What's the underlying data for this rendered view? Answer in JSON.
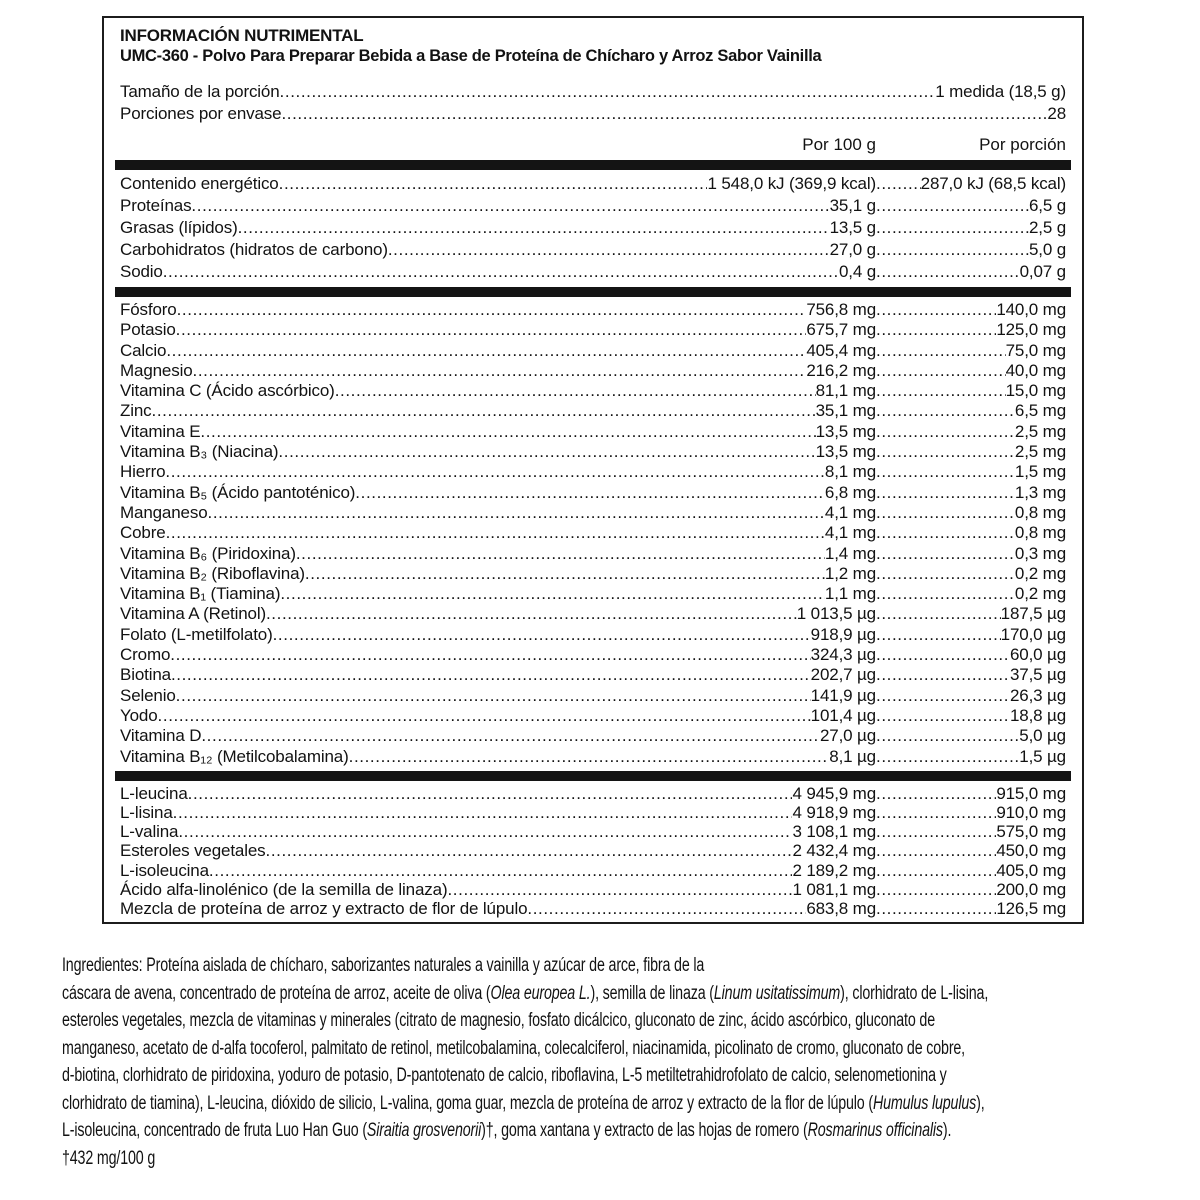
{
  "colors": {
    "ink": "#121212",
    "bar": "#141414",
    "background": "#ffffff"
  },
  "panel": {
    "title": "INFORMACIÓN NUTRIMENTAL",
    "subtitle": "UMC-360 - Polvo Para Preparar Bebida a Base de Proteína de Chícharo y Arroz Sabor Vainilla",
    "serving_rows": [
      {
        "label": "Tamaño de la porción",
        "value": "1 medida (18,5 g)"
      },
      {
        "label": "Porciones por envase",
        "value": "28"
      }
    ],
    "columns": {
      "per100": "Por 100 g",
      "per_serving": "Por porción"
    },
    "sections": [
      {
        "name": "macronutrientes",
        "rows": [
          {
            "label": "Contenido energético",
            "per100": "1 548,0 kJ (369,9 kcal)",
            "serving": "287,0 kJ (68,5 kcal)"
          },
          {
            "label": "Proteínas",
            "per100": "35,1 g",
            "serving": "6,5 g"
          },
          {
            "label": "Grasas (lípidos)",
            "per100": "13,5 g",
            "serving": "2,5 g"
          },
          {
            "label": "Carbohidratos (hidratos de carbono)",
            "per100": "27,0 g",
            "serving": "5,0 g"
          },
          {
            "label": "Sodio",
            "per100": "0,4 g",
            "serving": "0,07 g"
          }
        ]
      },
      {
        "name": "vitaminas-y-minerales",
        "rows": [
          {
            "label": "Fósforo",
            "per100": "756,8 mg",
            "serving": "140,0 mg"
          },
          {
            "label": "Potasio",
            "per100": "675,7 mg",
            "serving": "125,0 mg"
          },
          {
            "label": "Calcio",
            "per100": "405,4 mg",
            "serving": "75,0 mg"
          },
          {
            "label": "Magnesio",
            "per100": "216,2 mg",
            "serving": "40,0 mg"
          },
          {
            "label": "Vitamina C (Ácido ascórbico)",
            "per100": "81,1 mg",
            "serving": "15,0 mg"
          },
          {
            "label": "Zinc",
            "per100": "35,1 mg",
            "serving": "6,5 mg"
          },
          {
            "label": "Vitamina E",
            "per100": "13,5 mg",
            "serving": "2,5 mg"
          },
          {
            "label": "Vitamina B₃ (Niacina)",
            "per100": "13,5 mg",
            "serving": "2,5 mg"
          },
          {
            "label": "Hierro",
            "per100": "8,1 mg",
            "serving": "1,5 mg"
          },
          {
            "label": "Vitamina B₅ (Ácido pantoténico)",
            "per100": "6,8 mg",
            "serving": "1,3 mg"
          },
          {
            "label": "Manganeso",
            "per100": "4,1 mg",
            "serving": "0,8 mg"
          },
          {
            "label": "Cobre",
            "per100": "4,1 mg",
            "serving": "0,8 mg"
          },
          {
            "label": "Vitamina B₆ (Piridoxina)",
            "per100": "1,4 mg",
            "serving": "0,3 mg"
          },
          {
            "label": "Vitamina B₂ (Riboflavina)",
            "per100": "1,2 mg",
            "serving": "0,2 mg"
          },
          {
            "label": "Vitamina B₁ (Tiamina)",
            "per100": "1,1 mg",
            "serving": "0,2 mg"
          },
          {
            "label": "Vitamina A (Retinol)",
            "per100": "1 013,5 µg",
            "serving": "187,5 µg"
          },
          {
            "label": "Folato (L-metilfolato)",
            "per100": "918,9 µg",
            "serving": "170,0 µg"
          },
          {
            "label": "Cromo",
            "per100": "324,3 µg",
            "serving": "60,0 µg"
          },
          {
            "label": "Biotina",
            "per100": "202,7 µg",
            "serving": "37,5 µg"
          },
          {
            "label": "Selenio",
            "per100": "141,9 µg",
            "serving": "26,3 µg"
          },
          {
            "label": "Yodo",
            "per100": "101,4 µg",
            "serving": "18,8 µg"
          },
          {
            "label": "Vitamina D",
            "per100": "27,0 µg",
            "serving": "5,0 µg"
          },
          {
            "label": "Vitamina B₁₂ (Metilcobalamina)",
            "per100": "8,1 µg",
            "serving": "1,5 µg"
          }
        ]
      },
      {
        "name": "aminoacidos-y-otros",
        "rows": [
          {
            "label": "L-leucina",
            "per100": "4 945,9 mg",
            "serving": "915,0 mg"
          },
          {
            "label": "L-lisina",
            "per100": "4 918,9 mg",
            "serving": "910,0 mg"
          },
          {
            "label": "L-valina",
            "per100": "3 108,1 mg",
            "serving": "575,0 mg"
          },
          {
            "label": "Esteroles vegetales",
            "per100": "2 432,4 mg",
            "serving": "450,0 mg"
          },
          {
            "label": "L-isoleucina",
            "per100": "2 189,2 mg",
            "serving": "405,0 mg"
          },
          {
            "label": "Ácido alfa-linolénico (de la semilla de linaza)",
            "per100": "1 081,1 mg",
            "serving": "200,0 mg"
          },
          {
            "label": "Mezcla de proteína de arroz y extracto de flor de lúpulo",
            "per100": "683,8 mg",
            "serving": "126,5 mg"
          }
        ]
      }
    ]
  },
  "ingredients": {
    "lines": [
      [
        {
          "t": "Ingredientes: Proteína aislada de chícharo, saborizantes naturales a vainilla y azúcar de arce, fibra de la"
        }
      ],
      [
        {
          "t": "cáscara de avena, concentrado de proteína de arroz, aceite de oliva ("
        },
        {
          "t": "Olea europea L.",
          "i": true
        },
        {
          "t": "), semilla de linaza ("
        },
        {
          "t": "Linum usitatissimum",
          "i": true
        },
        {
          "t": "), clorhidrato de L-lisina,"
        }
      ],
      [
        {
          "t": "esteroles vegetales, mezcla de vitaminas y minerales (citrato de magnesio, fosfato dicálcico, gluconato de zinc, ácido ascórbico, gluconato de"
        }
      ],
      [
        {
          "t": "manganeso, acetato de d-alfa tocoferol, palmitato de retinol, metilcobalamina, colecalciferol, niacinamida, picolinato de cromo, gluconato de cobre,"
        }
      ],
      [
        {
          "t": "d-biotina, clorhidrato de piridoxina, yoduro de potasio, D-pantotenato de calcio, riboflavina, L-5 metiltetrahidrofolato de calcio, selenometionina y"
        }
      ],
      [
        {
          "t": "clorhidrato de tiamina), L-leucina, dióxido de silicio, L-valina, goma guar, mezcla de proteína de arroz y extracto de la flor de lúpulo ("
        },
        {
          "t": "Humulus lupulus",
          "i": true
        },
        {
          "t": "),"
        }
      ],
      [
        {
          "t": "L-isoleucina, concentrado de fruta Luo Han Guo ("
        },
        {
          "t": "Siraitia grosvenorii",
          "i": true
        },
        {
          "t": ")†, goma xantana y extracto de las hojas de romero ("
        },
        {
          "t": "Rosmarinus officinalis",
          "i": true
        },
        {
          "t": ")."
        }
      ],
      [
        {
          "t": "†432 mg/100 g"
        }
      ]
    ]
  }
}
